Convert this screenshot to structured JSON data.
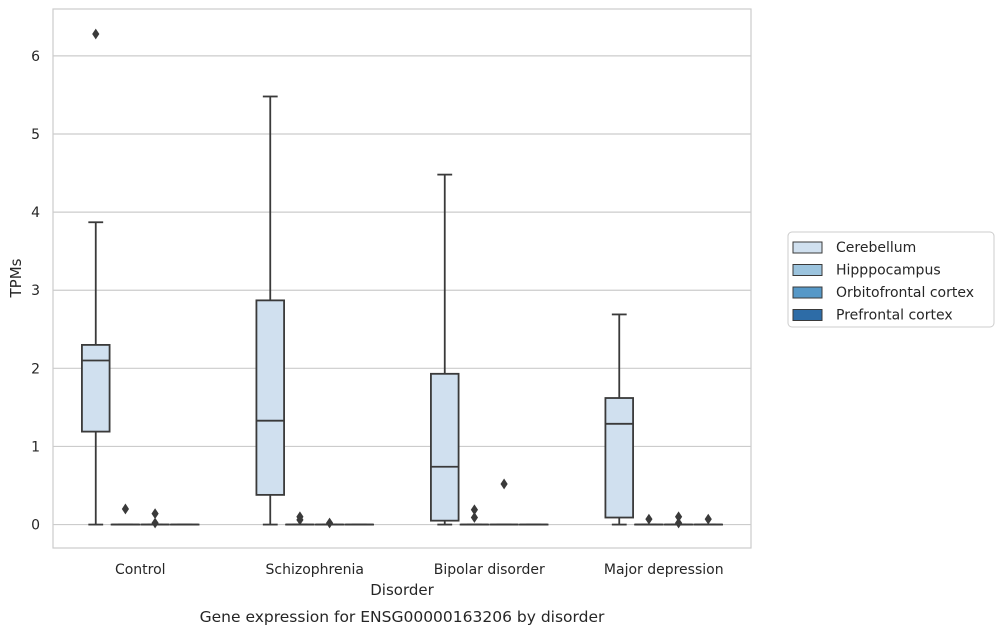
{
  "chart_data": {
    "type": "box",
    "title": "",
    "caption": "Gene expression for ENSG00000163206 by disorder",
    "xlabel": "Disorder",
    "ylabel": "TPMs",
    "ylim": [
      -0.3,
      6.6
    ],
    "yticks": [
      0,
      1,
      2,
      3,
      4,
      5,
      6
    ],
    "grid": "y",
    "legend_position": "right",
    "categories": [
      "Control",
      "Schizophrenia",
      "Bipolar disorder",
      "Major depression"
    ],
    "series": [
      {
        "name": "Cerebellum",
        "color": "#d0e0ef",
        "boxes": [
          {
            "whisker_low": 0.0,
            "q1": 1.19,
            "median": 2.1,
            "q3": 2.3,
            "whisker_high": 3.87,
            "outliers": [
              6.28
            ]
          },
          {
            "whisker_low": 0.0,
            "q1": 0.38,
            "median": 1.33,
            "q3": 2.87,
            "whisker_high": 5.48,
            "outliers": []
          },
          {
            "whisker_low": 0.0,
            "q1": 0.05,
            "median": 0.74,
            "q3": 1.93,
            "whisker_high": 4.48,
            "outliers": []
          },
          {
            "whisker_low": 0.0,
            "q1": 0.09,
            "median": 1.29,
            "q3": 1.62,
            "whisker_high": 2.69,
            "outliers": []
          }
        ]
      },
      {
        "name": "Hipppocampus",
        "color": "#9cc4de",
        "boxes": [
          {
            "whisker_low": 0.0,
            "q1": 0.0,
            "median": 0.0,
            "q3": 0.0,
            "whisker_high": 0.0,
            "outliers": [
              0.2
            ]
          },
          {
            "whisker_low": 0.0,
            "q1": 0.0,
            "median": 0.0,
            "q3": 0.0,
            "whisker_high": 0.0,
            "outliers": [
              0.06,
              0.1
            ]
          },
          {
            "whisker_low": 0.0,
            "q1": 0.0,
            "median": 0.0,
            "q3": 0.0,
            "whisker_high": 0.0,
            "outliers": [
              0.09,
              0.19
            ]
          },
          {
            "whisker_low": 0.0,
            "q1": 0.0,
            "median": 0.0,
            "q3": 0.0,
            "whisker_high": 0.0,
            "outliers": [
              0.07
            ]
          }
        ]
      },
      {
        "name": "Orbitofrontal cortex",
        "color": "#5698c7",
        "boxes": [
          {
            "whisker_low": 0.0,
            "q1": 0.0,
            "median": 0.0,
            "q3": 0.0,
            "whisker_high": 0.0,
            "outliers": [
              0.02,
              0.14
            ]
          },
          {
            "whisker_low": 0.0,
            "q1": 0.0,
            "median": 0.0,
            "q3": 0.0,
            "whisker_high": 0.0,
            "outliers": [
              0.02
            ]
          },
          {
            "whisker_low": 0.0,
            "q1": 0.0,
            "median": 0.0,
            "q3": 0.0,
            "whisker_high": 0.0,
            "outliers": [
              0.52
            ]
          },
          {
            "whisker_low": 0.0,
            "q1": 0.0,
            "median": 0.0,
            "q3": 0.0,
            "whisker_high": 0.0,
            "outliers": [
              0.02,
              0.1
            ]
          }
        ]
      },
      {
        "name": "Prefrontal cortex",
        "color": "#2d6ca7",
        "boxes": [
          {
            "whisker_low": 0.0,
            "q1": 0.0,
            "median": 0.0,
            "q3": 0.0,
            "whisker_high": 0.0,
            "outliers": []
          },
          {
            "whisker_low": 0.0,
            "q1": 0.0,
            "median": 0.0,
            "q3": 0.0,
            "whisker_high": 0.0,
            "outliers": []
          },
          {
            "whisker_low": 0.0,
            "q1": 0.0,
            "median": 0.0,
            "q3": 0.0,
            "whisker_high": 0.0,
            "outliers": []
          },
          {
            "whisker_low": 0.0,
            "q1": 0.0,
            "median": 0.0,
            "q3": 0.0,
            "whisker_high": 0.0,
            "outliers": [
              0.07
            ]
          }
        ]
      }
    ]
  }
}
